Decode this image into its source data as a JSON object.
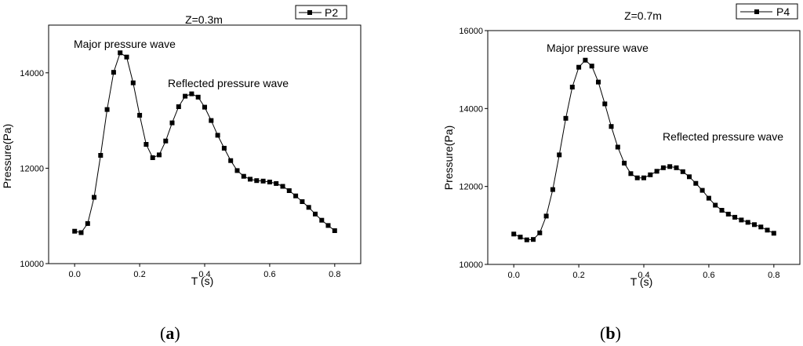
{
  "chart_data": [
    {
      "type": "line",
      "title": "Z=0.3m",
      "xlabel": "T (s)",
      "ylabel": "Pressure(Pa)",
      "xlim": [
        -0.08,
        0.88
      ],
      "ylim": [
        10000,
        15000
      ],
      "xticks": [
        "0.0",
        "0.2",
        "0.4",
        "0.6",
        "0.8"
      ],
      "yticks": [
        "10000",
        "12000",
        "14000"
      ],
      "legend": "top-right",
      "annotations": [
        "Major pressure wave",
        "Reflected pressure wave"
      ],
      "panel_letter": "a",
      "series": [
        {
          "name": "P2",
          "x": [
            0.0,
            0.02,
            0.04,
            0.06,
            0.08,
            0.1,
            0.12,
            0.14,
            0.16,
            0.18,
            0.2,
            0.22,
            0.24,
            0.26,
            0.28,
            0.3,
            0.32,
            0.34,
            0.36,
            0.38,
            0.4,
            0.42,
            0.44,
            0.46,
            0.48,
            0.5,
            0.52,
            0.54,
            0.56,
            0.58,
            0.6,
            0.62,
            0.64,
            0.66,
            0.68,
            0.7,
            0.72,
            0.74,
            0.76,
            0.78,
            0.8
          ],
          "y": [
            10680,
            10650,
            10840,
            11390,
            12270,
            13230,
            14010,
            14420,
            14330,
            13790,
            13110,
            12500,
            12220,
            12280,
            12570,
            12950,
            13290,
            13510,
            13560,
            13490,
            13280,
            13000,
            12690,
            12420,
            12160,
            11950,
            11830,
            11770,
            11740,
            11730,
            11710,
            11680,
            11620,
            11530,
            11420,
            11300,
            11180,
            11040,
            10910,
            10800,
            10690
          ]
        }
      ]
    },
    {
      "type": "line",
      "title": "Z=0.7m",
      "xlabel": "T (s)",
      "ylabel": "Pressure(Pa)",
      "xlim": [
        -0.08,
        0.88
      ],
      "ylim": [
        10000,
        16000
      ],
      "xticks": [
        "0.0",
        "0.2",
        "0.4",
        "0.6",
        "0.8"
      ],
      "yticks": [
        "10000",
        "12000",
        "14000",
        "16000"
      ],
      "legend": "top-right",
      "annotations": [
        "Major pressure wave",
        "Reflected pressure wave"
      ],
      "panel_letter": "b",
      "series": [
        {
          "name": "P4",
          "x": [
            0.0,
            0.02,
            0.04,
            0.06,
            0.08,
            0.1,
            0.12,
            0.14,
            0.16,
            0.18,
            0.2,
            0.22,
            0.24,
            0.26,
            0.28,
            0.3,
            0.32,
            0.34,
            0.36,
            0.38,
            0.4,
            0.42,
            0.44,
            0.46,
            0.48,
            0.5,
            0.52,
            0.54,
            0.56,
            0.58,
            0.6,
            0.62,
            0.64,
            0.66,
            0.68,
            0.7,
            0.72,
            0.74,
            0.76,
            0.78,
            0.8
          ],
          "y": [
            10780,
            10700,
            10630,
            10640,
            10810,
            11240,
            11920,
            12810,
            13750,
            14550,
            15060,
            15240,
            15090,
            14680,
            14120,
            13540,
            13010,
            12600,
            12330,
            12220,
            12220,
            12300,
            12390,
            12480,
            12510,
            12480,
            12380,
            12250,
            12080,
            11900,
            11700,
            11520,
            11390,
            11290,
            11210,
            11140,
            11080,
            11020,
            10960,
            10880,
            10800
          ]
        }
      ]
    }
  ]
}
